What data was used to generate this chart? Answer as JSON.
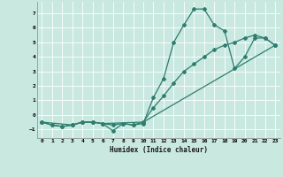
{
  "xlabel": "Humidex (Indice chaleur)",
  "background_color": "#c8e8e0",
  "grid_color": "#e8f8f8",
  "line_color": "#2e7d6e",
  "xlim": [
    -0.5,
    23.5
  ],
  "ylim": [
    -1.6,
    7.8
  ],
  "xticks": [
    0,
    1,
    2,
    3,
    4,
    5,
    6,
    7,
    8,
    9,
    10,
    11,
    12,
    13,
    14,
    15,
    16,
    17,
    18,
    19,
    20,
    21,
    22,
    23
  ],
  "yticks": [
    -1,
    0,
    1,
    2,
    3,
    4,
    5,
    6,
    7
  ],
  "series1_x": [
    0,
    1,
    2,
    3,
    4,
    5,
    6,
    7,
    8,
    9,
    10,
    11,
    12,
    13,
    14,
    15,
    16,
    17,
    18,
    19,
    20,
    21,
    22,
    23
  ],
  "series1_y": [
    -0.5,
    -0.7,
    -0.8,
    -0.7,
    -0.5,
    -0.5,
    -0.6,
    -1.1,
    -0.6,
    -0.7,
    -0.6,
    1.2,
    2.5,
    5.0,
    6.2,
    7.3,
    7.3,
    6.2,
    5.8,
    3.2,
    4.0,
    5.3,
    5.3,
    4.8
  ],
  "series2_x": [
    0,
    1,
    2,
    3,
    4,
    5,
    6,
    7,
    8,
    9,
    10,
    11,
    12,
    13,
    14,
    15,
    16,
    17,
    18,
    19,
    20,
    21,
    22,
    23
  ],
  "series2_y": [
    -0.5,
    -0.7,
    -0.8,
    -0.7,
    -0.5,
    -0.5,
    -0.6,
    -0.7,
    -0.6,
    -0.7,
    -0.5,
    0.5,
    1.3,
    2.2,
    3.0,
    3.5,
    4.0,
    4.5,
    4.8,
    5.0,
    5.3,
    5.5,
    5.3,
    4.8
  ],
  "series3_x": [
    0,
    3,
    4,
    5,
    6,
    10,
    23
  ],
  "series3_y": [
    -0.5,
    -0.7,
    -0.5,
    -0.5,
    -0.6,
    -0.5,
    4.8
  ]
}
